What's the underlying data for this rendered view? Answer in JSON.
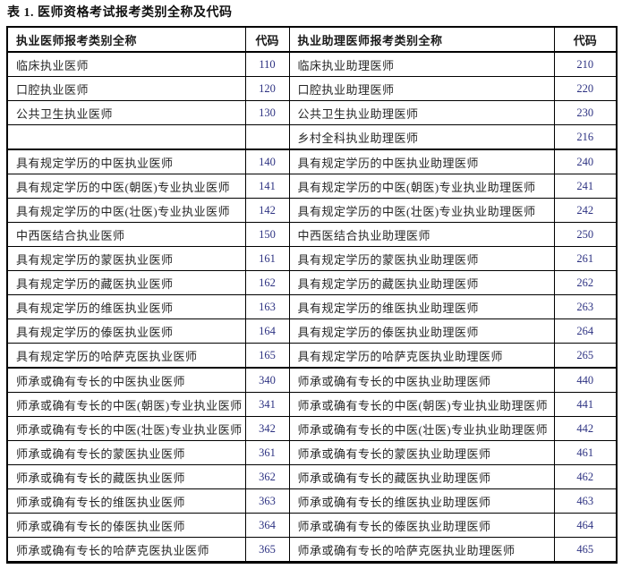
{
  "title": "表 1. 医师资格考试报考类别全称及代码",
  "colors": {
    "code_text": "#2d3282",
    "body_text": "#262626",
    "border": "#000000",
    "background": "#ffffff"
  },
  "table": {
    "headers": {
      "physician": "执业医师报考类别全称",
      "physician_code": "代码",
      "assistant": "执业助理医师报考类别全称",
      "assistant_code": "代码"
    },
    "sections": [
      {
        "rows": [
          [
            "临床执业医师",
            "110",
            "临床执业助理医师",
            "210"
          ],
          [
            "口腔执业医师",
            "120",
            "口腔执业助理医师",
            "220"
          ],
          [
            "公共卫生执业医师",
            "130",
            "公共卫生执业助理医师",
            "230"
          ],
          [
            "",
            "",
            "乡村全科执业助理医师",
            "216"
          ]
        ]
      },
      {
        "rows": [
          [
            "具有规定学历的中医执业医师",
            "140",
            "具有规定学历的中医执业助理医师",
            "240"
          ],
          [
            "具有规定学历的中医(朝医)专业执业医师",
            "141",
            "具有规定学历的中医(朝医)专业执业助理医师",
            "241"
          ],
          [
            "具有规定学历的中医(壮医)专业执业医师",
            "142",
            "具有规定学历的中医(壮医)专业执业助理医师",
            "242"
          ],
          [
            "中西医结合执业医师",
            "150",
            "中西医结合执业助理医师",
            "250"
          ],
          [
            "具有规定学历的蒙医执业医师",
            "161",
            "具有规定学历的蒙医执业助理医师",
            "261"
          ],
          [
            "具有规定学历的藏医执业医师",
            "162",
            "具有规定学历的藏医执业助理医师",
            "262"
          ],
          [
            "具有规定学历的维医执业医师",
            "163",
            "具有规定学历的维医执业助理医师",
            "263"
          ],
          [
            "具有规定学历的傣医执业医师",
            "164",
            "具有规定学历的傣医执业助理医师",
            "264"
          ],
          [
            "具有规定学历的哈萨克医执业医师",
            "165",
            "具有规定学历的哈萨克医执业助理医师",
            "265"
          ]
        ]
      },
      {
        "rows": [
          [
            "师承或确有专长的中医执业医师",
            "340",
            "师承或确有专长的中医执业助理医师",
            "440"
          ],
          [
            "师承或确有专长的中医(朝医)专业执业医师",
            "341",
            "师承或确有专长的中医(朝医)专业执业助理医师",
            "441"
          ],
          [
            "师承或确有专长的中医(壮医)专业执业医师",
            "342",
            "师承或确有专长的中医(壮医)专业执业助理医师",
            "442"
          ],
          [
            "师承或确有专长的蒙医执业医师",
            "361",
            "师承或确有专长的蒙医执业助理医师",
            "461"
          ],
          [
            "师承或确有专长的藏医执业医师",
            "362",
            "师承或确有专长的藏医执业助理医师",
            "462"
          ],
          [
            "师承或确有专长的维医执业医师",
            "363",
            "师承或确有专长的维医执业助理医师",
            "463"
          ],
          [
            "师承或确有专长的傣医执业医师",
            "364",
            "师承或确有专长的傣医执业助理医师",
            "464"
          ],
          [
            "师承或确有专长的哈萨克医执业医师",
            "365",
            "师承或确有专长的哈萨克医执业助理医师",
            "465"
          ]
        ]
      }
    ]
  }
}
